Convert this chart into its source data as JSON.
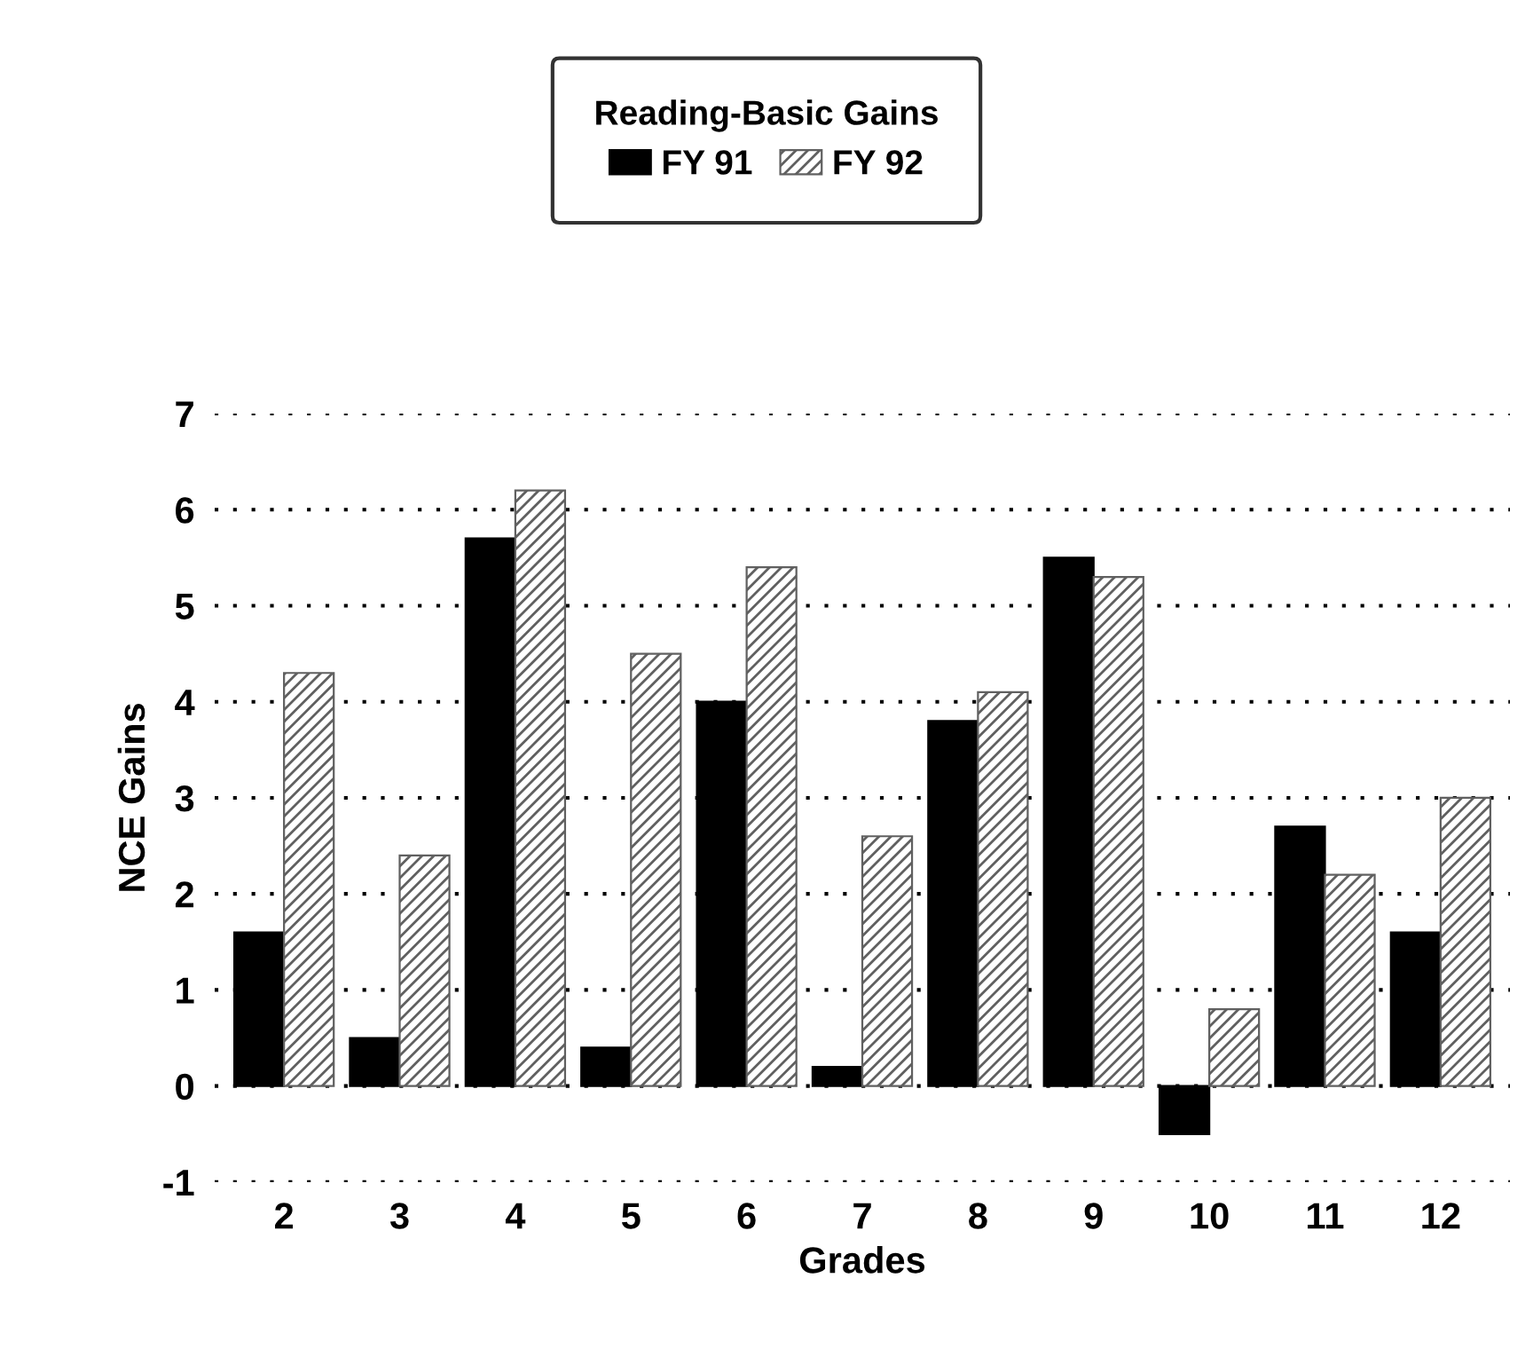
{
  "chart_data": {
    "type": "bar",
    "xlabel": "Grades",
    "ylabel": "NCE Gains",
    "legend_title": "Reading-Basic Gains",
    "categories": [
      "2",
      "3",
      "4",
      "5",
      "6",
      "7",
      "8",
      "9",
      "10",
      "11",
      "12"
    ],
    "series": [
      {
        "name": "FY 91",
        "color": "#000000",
        "values": [
          1.6,
          0.5,
          5.7,
          0.4,
          4.0,
          0.2,
          3.8,
          5.5,
          -0.5,
          2.7,
          1.6
        ]
      },
      {
        "name": "FY 92",
        "color": "#606060",
        "values": [
          4.3,
          2.4,
          6.2,
          4.5,
          5.4,
          2.6,
          4.1,
          5.3,
          0.8,
          2.2,
          3.0
        ]
      }
    ],
    "ylim": [
      -1,
      7
    ],
    "yticks": [
      -1,
      0,
      1,
      2,
      3,
      4,
      5,
      6,
      7
    ],
    "grid": "y",
    "legend": "top"
  }
}
